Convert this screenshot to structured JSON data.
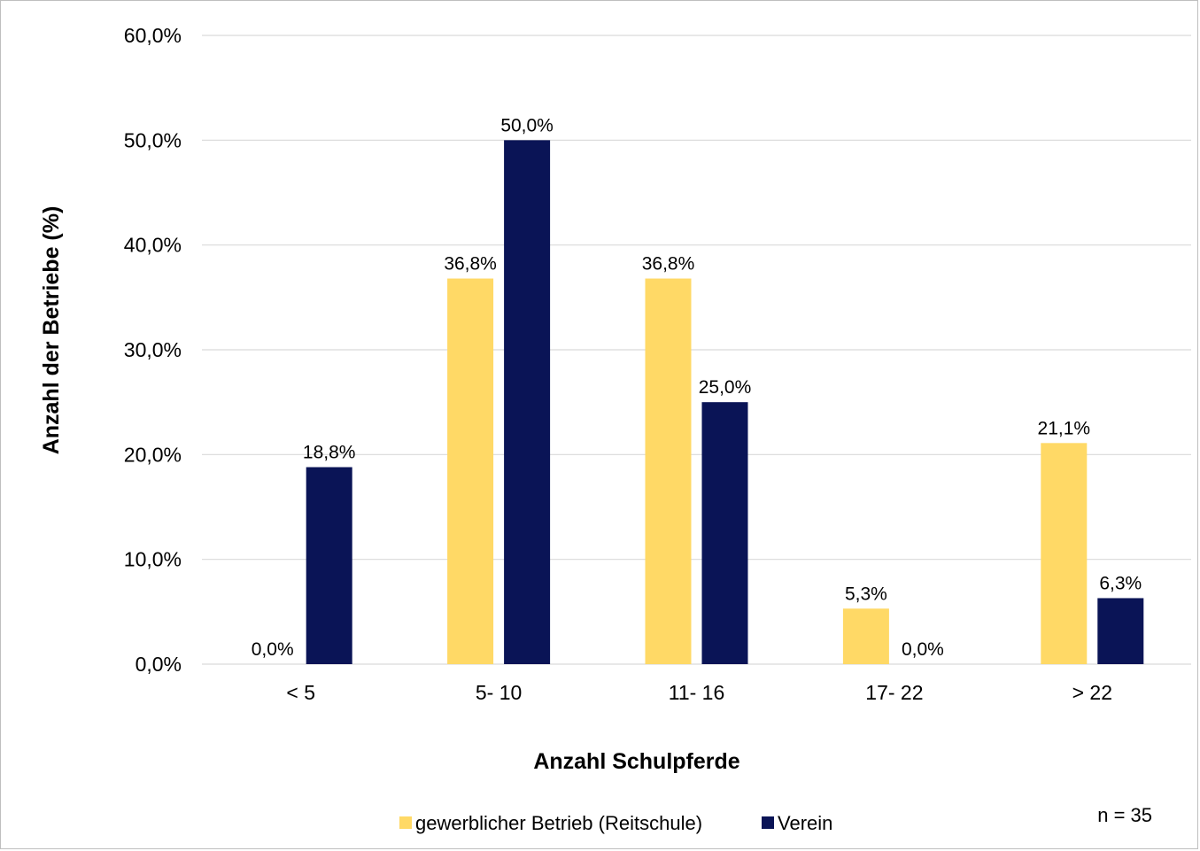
{
  "chart_data": {
    "type": "bar",
    "categories": [
      "< 5",
      "5- 10",
      "11- 16",
      "17- 22",
      "> 22"
    ],
    "series": [
      {
        "name": "gewerblicher Betrieb (Reitschule)",
        "values": [
          0.0,
          36.8,
          36.8,
          5.3,
          21.1
        ],
        "labels": [
          "0,0%",
          "36,8%",
          "36,8%",
          "5,3%",
          "21,1%"
        ],
        "color": "#FFD966"
      },
      {
        "name": "Verein",
        "values": [
          18.8,
          50.0,
          25.0,
          0.0,
          6.3
        ],
        "labels": [
          "18,8%",
          "50,0%",
          "25,0%",
          "0,0%",
          "6,3%"
        ],
        "color": "#0A1456"
      }
    ],
    "ylim": [
      0,
      60
    ],
    "yticks": [
      0,
      10,
      20,
      30,
      40,
      50,
      60
    ],
    "ytick_labels": [
      "0,0%",
      "10,0%",
      "20,0%",
      "30,0%",
      "40,0%",
      "50,0%",
      "60,0%"
    ],
    "xlabel": "Anzahl Schulpferde",
    "ylabel": "Anzahl der Betriebe (%)",
    "annotation": "n = 35",
    "grid": true,
    "legend_position": "bottom"
  }
}
